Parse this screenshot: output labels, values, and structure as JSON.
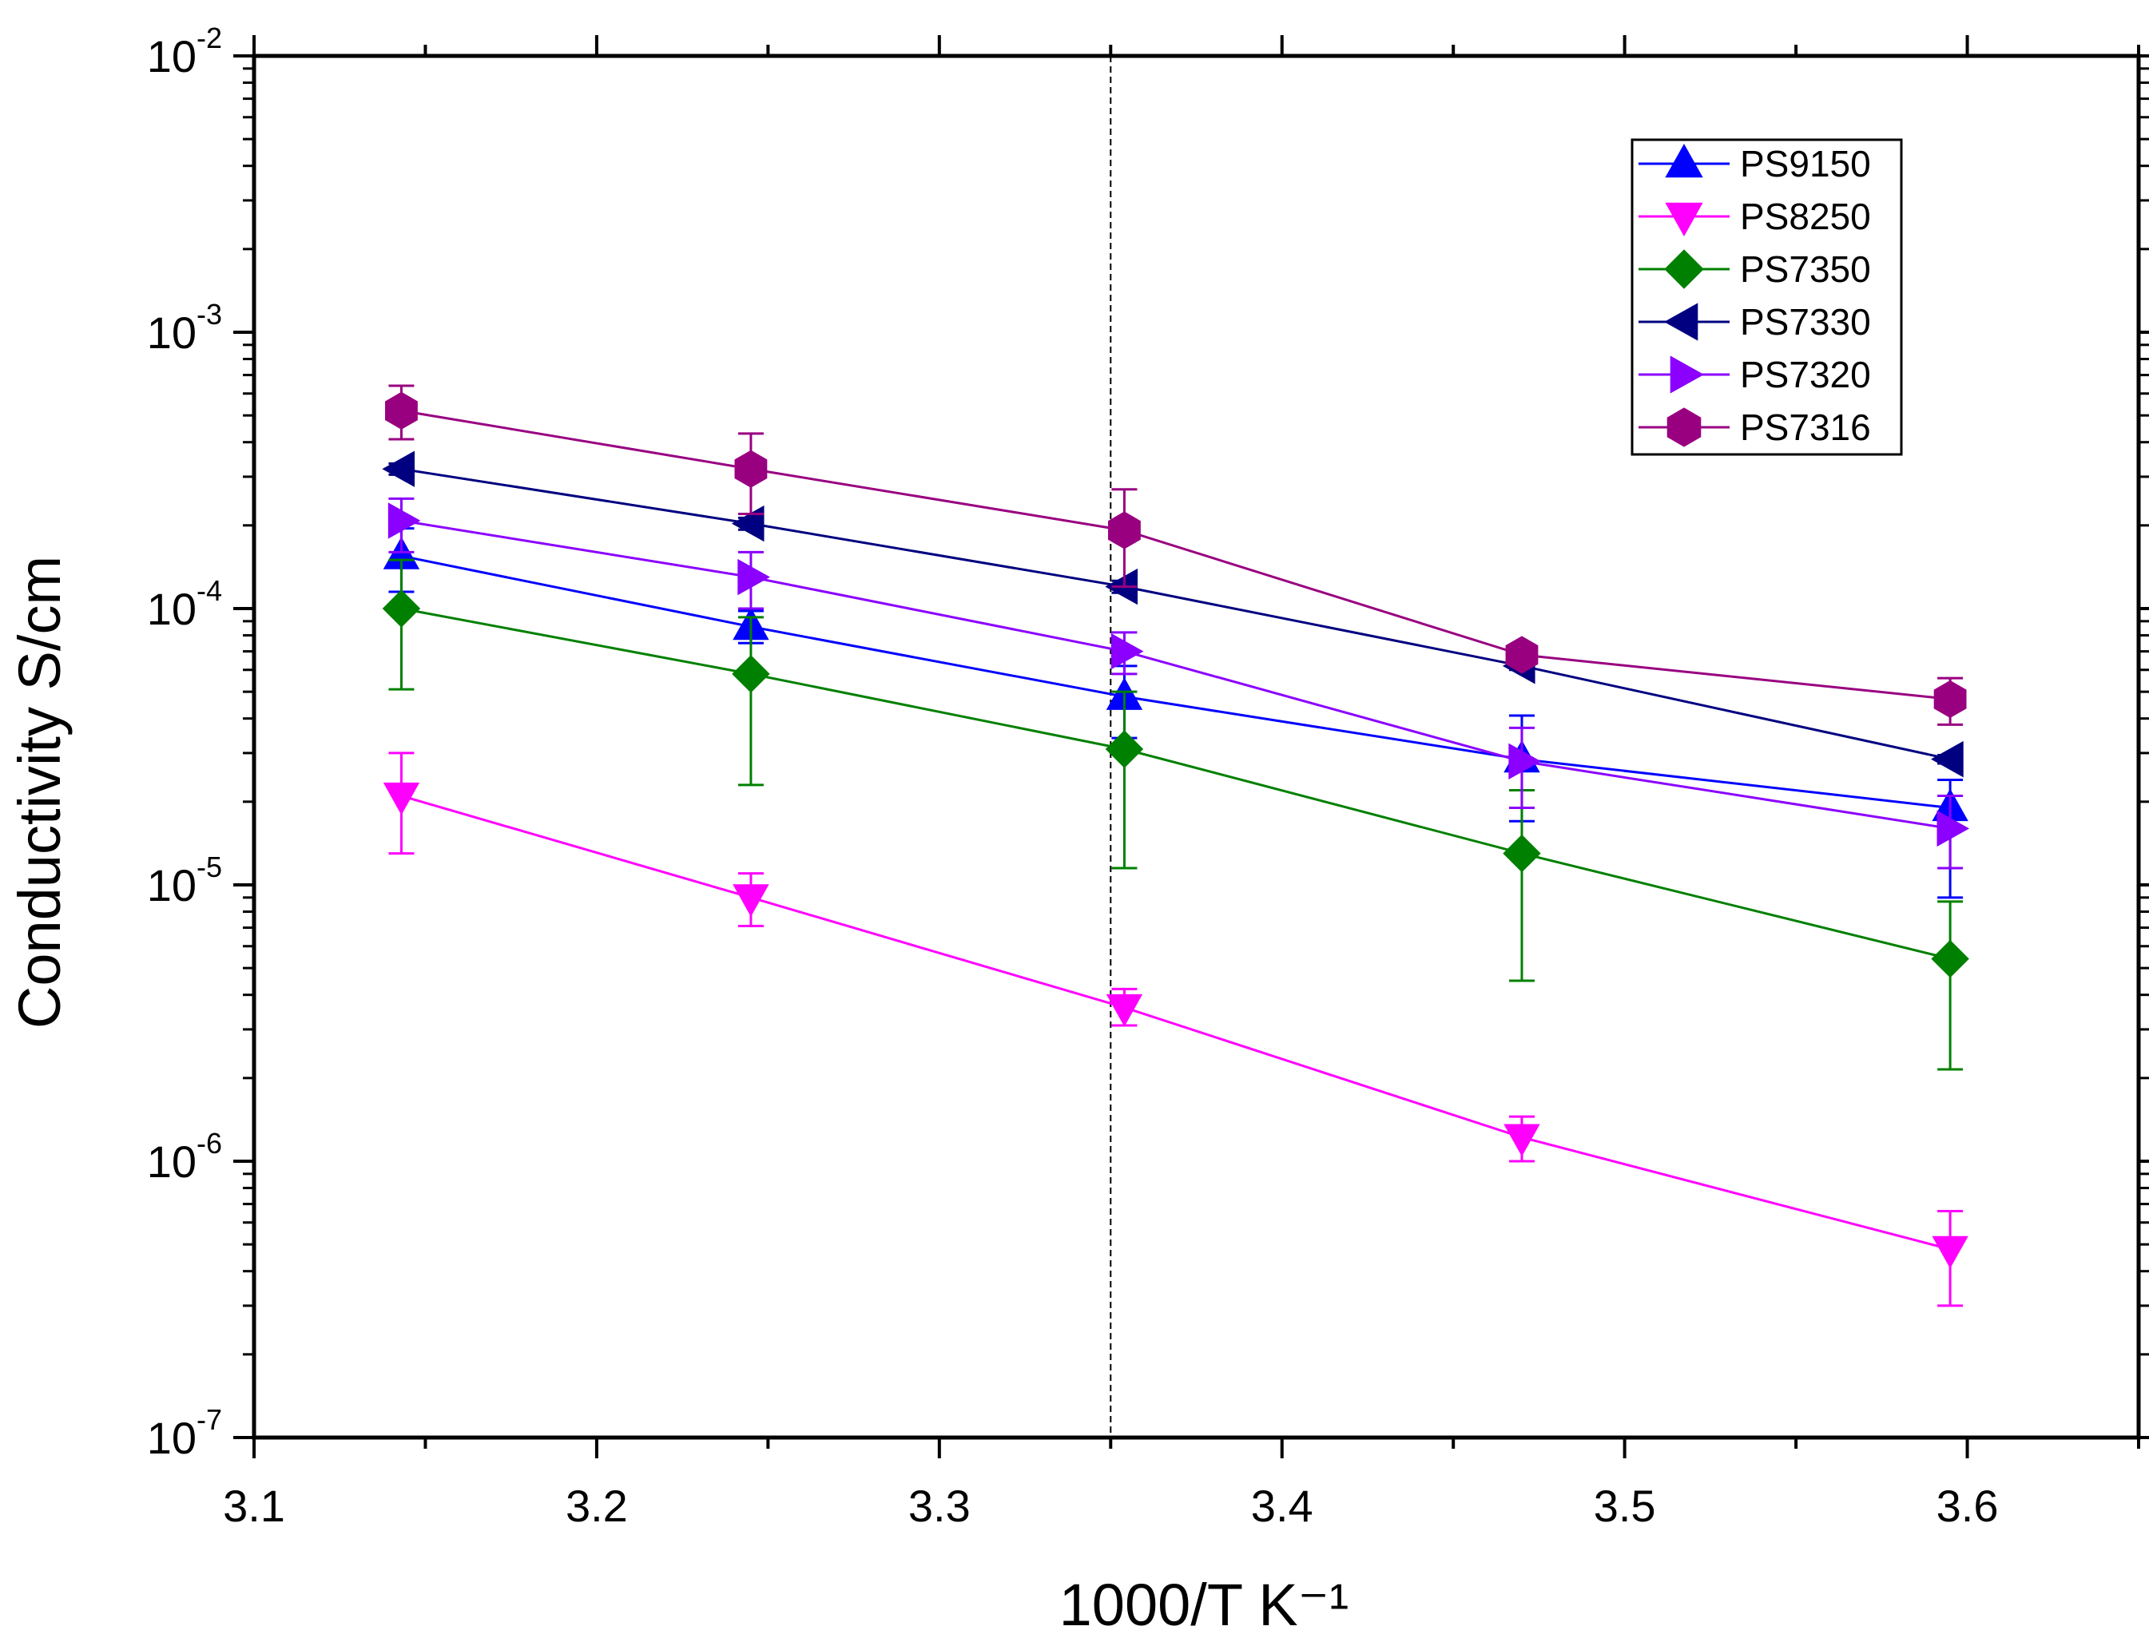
{
  "chart_data": {
    "type": "scatter",
    "title": "",
    "xlabel": "1000/T K⁻¹",
    "ylabel": "Conductivity S/cm",
    "xlim": [
      3.1,
      3.65
    ],
    "ylim": [
      1e-07,
      0.01
    ],
    "yscale": "log",
    "x_ticks": [
      "3.1",
      "3.2",
      "3.3",
      "3.4",
      "3.5",
      "3.6"
    ],
    "y_ticks": [
      {
        "base": "10",
        "exp": "-7"
      },
      {
        "base": "10",
        "exp": "-6"
      },
      {
        "base": "10",
        "exp": "-5"
      },
      {
        "base": "10",
        "exp": "-4"
      },
      {
        "base": "10",
        "exp": "-3"
      },
      {
        "base": "10",
        "exp": "-2"
      }
    ],
    "reference_line_x": 3.35,
    "legend_position": "top-right",
    "x": [
      3.143,
      3.245,
      3.354,
      3.47,
      3.595
    ],
    "series": [
      {
        "name": "PS9150",
        "color": "#0000ff",
        "marker": "triangle-up",
        "values": [
          0.000155,
          8.6e-05,
          4.8e-05,
          2.85e-05,
          1.9e-05
        ],
        "err_low": [
          0.000115,
          7.5e-05,
          3.4e-05,
          1.7e-05,
          9e-06
        ],
        "err_high": [
          0.000195,
          9.8e-05,
          6.2e-05,
          4.1e-05,
          2.4e-05
        ]
      },
      {
        "name": "PS8250",
        "color": "#ff00ff",
        "marker": "triangle-down",
        "values": [
          2.1e-05,
          9e-06,
          3.6e-06,
          1.22e-06,
          4.8e-07
        ],
        "err_low": [
          1.3e-05,
          7.1e-06,
          3.1e-06,
          1e-06,
          3e-07
        ],
        "err_high": [
          3e-05,
          1.1e-05,
          4.2e-06,
          1.45e-06,
          6.6e-07
        ]
      },
      {
        "name": "PS7350",
        "color": "#008000",
        "marker": "diamond",
        "values": [
          0.0001,
          5.8e-05,
          3.1e-05,
          1.3e-05,
          5.4e-06
        ],
        "err_low": [
          5.1e-05,
          2.3e-05,
          1.15e-05,
          4.5e-06,
          2.15e-06
        ],
        "err_high": [
          0.00015,
          9.3e-05,
          5e-05,
          2.2e-05,
          8.7e-06
        ]
      },
      {
        "name": "PS7330",
        "color": "#000080",
        "marker": "triangle-left",
        "values": [
          0.00032,
          0.000203,
          0.00012,
          6.2e-05,
          2.85e-05
        ],
        "err_low": [
          0.000305,
          0.000193,
          0.000114,
          6e-05,
          2.75e-05
        ],
        "err_high": [
          0.000335,
          0.000213,
          0.000126,
          6.4e-05,
          2.95e-05
        ]
      },
      {
        "name": "PS7320",
        "color": "#8b00ff",
        "marker": "triangle-right",
        "values": [
          0.000208,
          0.00013,
          7e-05,
          2.8e-05,
          1.6e-05
        ],
        "err_low": [
          0.00016,
          0.0001,
          5.8e-05,
          1.9e-05,
          1.15e-05
        ],
        "err_high": [
          0.00025,
          0.00016,
          8.2e-05,
          3.7e-05,
          2.1e-05
        ]
      },
      {
        "name": "PS7316",
        "color": "#990080",
        "marker": "hexagon",
        "values": [
          0.00052,
          0.00032,
          0.000192,
          6.8e-05,
          4.7e-05
        ],
        "err_low": [
          0.00041,
          0.00022,
          0.00012,
          6.4e-05,
          3.8e-05
        ],
        "err_high": [
          0.00064,
          0.00043,
          0.00027,
          7.2e-05,
          5.6e-05
        ]
      }
    ]
  }
}
